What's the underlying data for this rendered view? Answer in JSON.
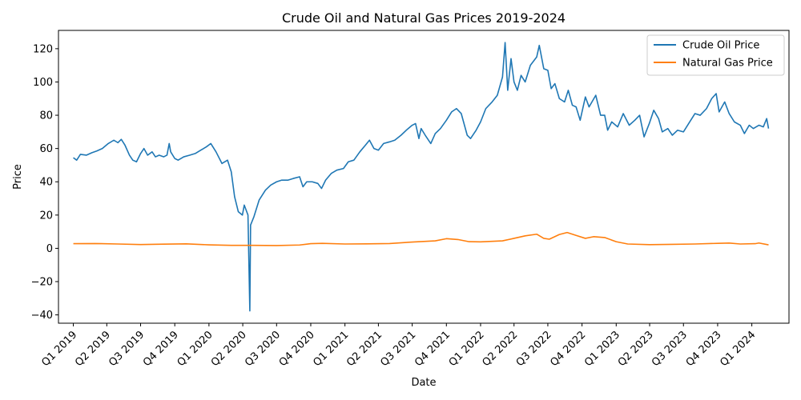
{
  "chart_data": {
    "type": "line",
    "title": "Crude Oil and Natural Gas Prices 2019-2024",
    "xlabel": "Date",
    "ylabel": "Price",
    "ylim": [
      -45,
      131
    ],
    "xlim": [
      "2018-11-22",
      "2024-04-10"
    ],
    "yticks": [
      -40,
      -20,
      0,
      20,
      40,
      60,
      80,
      100,
      120
    ],
    "xticks": [
      {
        "date": "2019-01-01",
        "label": "Q1 2019"
      },
      {
        "date": "2019-04-01",
        "label": "Q2 2019"
      },
      {
        "date": "2019-07-01",
        "label": "Q3 2019"
      },
      {
        "date": "2019-10-01",
        "label": "Q4 2019"
      },
      {
        "date": "2020-01-01",
        "label": "Q1 2020"
      },
      {
        "date": "2020-04-01",
        "label": "Q2 2020"
      },
      {
        "date": "2020-07-01",
        "label": "Q3 2020"
      },
      {
        "date": "2020-10-01",
        "label": "Q4 2020"
      },
      {
        "date": "2021-01-01",
        "label": "Q1 2021"
      },
      {
        "date": "2021-04-01",
        "label": "Q2 2021"
      },
      {
        "date": "2021-07-01",
        "label": "Q3 2021"
      },
      {
        "date": "2021-10-01",
        "label": "Q4 2021"
      },
      {
        "date": "2022-01-01",
        "label": "Q1 2022"
      },
      {
        "date": "2022-04-01",
        "label": "Q2 2022"
      },
      {
        "date": "2022-07-01",
        "label": "Q3 2022"
      },
      {
        "date": "2022-10-01",
        "label": "Q4 2022"
      },
      {
        "date": "2023-01-01",
        "label": "Q1 2023"
      },
      {
        "date": "2023-04-01",
        "label": "Q2 2023"
      },
      {
        "date": "2023-07-01",
        "label": "Q3 2023"
      },
      {
        "date": "2023-10-01",
        "label": "Q4 2023"
      },
      {
        "date": "2024-01-01",
        "label": "Q1 2024"
      }
    ],
    "legend": {
      "placement": "top-right"
    },
    "grid": false,
    "series": [
      {
        "name": "Crude Oil Price",
        "color": "#1f77b4",
        "points": [
          [
            "2019-01-01",
            54.5
          ],
          [
            "2019-01-10",
            53.0
          ],
          [
            "2019-01-20",
            56.5
          ],
          [
            "2019-02-05",
            56.0
          ],
          [
            "2019-02-20",
            57.5
          ],
          [
            "2019-03-05",
            58.5
          ],
          [
            "2019-03-20",
            60.0
          ],
          [
            "2019-04-05",
            63.0
          ],
          [
            "2019-04-20",
            65.0
          ],
          [
            "2019-05-01",
            63.5
          ],
          [
            "2019-05-10",
            65.5
          ],
          [
            "2019-05-20",
            62.0
          ],
          [
            "2019-06-01",
            56.0
          ],
          [
            "2019-06-10",
            53.0
          ],
          [
            "2019-06-20",
            52.0
          ],
          [
            "2019-07-01",
            57.0
          ],
          [
            "2019-07-10",
            60.0
          ],
          [
            "2019-07-20",
            56.0
          ],
          [
            "2019-08-01",
            58.0
          ],
          [
            "2019-08-10",
            55.0
          ],
          [
            "2019-08-20",
            56.0
          ],
          [
            "2019-09-01",
            55.0
          ],
          [
            "2019-09-10",
            56.0
          ],
          [
            "2019-09-16",
            63.0
          ],
          [
            "2019-09-20",
            58.0
          ],
          [
            "2019-10-01",
            54.0
          ],
          [
            "2019-10-10",
            53.0
          ],
          [
            "2019-10-25",
            55.0
          ],
          [
            "2019-11-10",
            56.0
          ],
          [
            "2019-11-25",
            57.0
          ],
          [
            "2019-12-10",
            59.0
          ],
          [
            "2019-12-25",
            61.0
          ],
          [
            "2020-01-06",
            63.0
          ],
          [
            "2020-01-20",
            58.0
          ],
          [
            "2020-02-05",
            51.0
          ],
          [
            "2020-02-20",
            53.0
          ],
          [
            "2020-03-01",
            46.0
          ],
          [
            "2020-03-10",
            31.0
          ],
          [
            "2020-03-20",
            22.0
          ],
          [
            "2020-03-31",
            20.0
          ],
          [
            "2020-04-05",
            26.0
          ],
          [
            "2020-04-15",
            20.0
          ],
          [
            "2020-04-20",
            -37.6
          ],
          [
            "2020-04-22",
            14.0
          ],
          [
            "2020-05-01",
            19.0
          ],
          [
            "2020-05-15",
            29.0
          ],
          [
            "2020-06-01",
            35.0
          ],
          [
            "2020-06-15",
            38.0
          ],
          [
            "2020-07-01",
            40.0
          ],
          [
            "2020-07-15",
            41.0
          ],
          [
            "2020-08-01",
            41.0
          ],
          [
            "2020-08-15",
            42.0
          ],
          [
            "2020-09-01",
            43.0
          ],
          [
            "2020-09-10",
            37.0
          ],
          [
            "2020-09-20",
            40.0
          ],
          [
            "2020-10-05",
            40.0
          ],
          [
            "2020-10-20",
            39.0
          ],
          [
            "2020-10-30",
            36.0
          ],
          [
            "2020-11-10",
            41.0
          ],
          [
            "2020-11-25",
            45.0
          ],
          [
            "2020-12-10",
            47.0
          ],
          [
            "2020-12-28",
            48.0
          ],
          [
            "2021-01-10",
            52.0
          ],
          [
            "2021-01-25",
            53.0
          ],
          [
            "2021-02-10",
            58.0
          ],
          [
            "2021-02-25",
            62.0
          ],
          [
            "2021-03-08",
            65.0
          ],
          [
            "2021-03-20",
            60.0
          ],
          [
            "2021-04-01",
            59.0
          ],
          [
            "2021-04-15",
            63.0
          ],
          [
            "2021-05-01",
            64.0
          ],
          [
            "2021-05-15",
            65.0
          ],
          [
            "2021-06-01",
            68.0
          ],
          [
            "2021-06-15",
            71.0
          ],
          [
            "2021-07-01",
            74.0
          ],
          [
            "2021-07-10",
            75.0
          ],
          [
            "2021-07-19",
            66.0
          ],
          [
            "2021-07-25",
            72.0
          ],
          [
            "2021-08-05",
            68.0
          ],
          [
            "2021-08-20",
            63.0
          ],
          [
            "2021-09-01",
            69.0
          ],
          [
            "2021-09-15",
            72.0
          ],
          [
            "2021-10-01",
            77.0
          ],
          [
            "2021-10-15",
            82.0
          ],
          [
            "2021-10-28",
            84.0
          ],
          [
            "2021-11-10",
            81.0
          ],
          [
            "2021-11-26",
            68.0
          ],
          [
            "2021-12-05",
            66.0
          ],
          [
            "2021-12-20",
            71.0
          ],
          [
            "2022-01-01",
            76.0
          ],
          [
            "2022-01-15",
            84.0
          ],
          [
            "2022-02-01",
            88.0
          ],
          [
            "2022-02-15",
            92.0
          ],
          [
            "2022-03-01",
            103.0
          ],
          [
            "2022-03-08",
            123.7
          ],
          [
            "2022-03-15",
            95.0
          ],
          [
            "2022-03-24",
            114.0
          ],
          [
            "2022-04-01",
            100.0
          ],
          [
            "2022-04-10",
            95.0
          ],
          [
            "2022-04-20",
            104.0
          ],
          [
            "2022-05-01",
            100.0
          ],
          [
            "2022-05-15",
            110.0
          ],
          [
            "2022-06-01",
            115.0
          ],
          [
            "2022-06-08",
            122.0
          ],
          [
            "2022-06-20",
            108.0
          ],
          [
            "2022-07-01",
            107.0
          ],
          [
            "2022-07-10",
            96.0
          ],
          [
            "2022-07-20",
            99.0
          ],
          [
            "2022-08-01",
            90.0
          ],
          [
            "2022-08-15",
            88.0
          ],
          [
            "2022-08-25",
            95.0
          ],
          [
            "2022-09-05",
            86.0
          ],
          [
            "2022-09-15",
            85.0
          ],
          [
            "2022-09-26",
            77.0
          ],
          [
            "2022-10-10",
            91.0
          ],
          [
            "2022-10-20",
            85.0
          ],
          [
            "2022-11-07",
            92.0
          ],
          [
            "2022-11-20",
            80.0
          ],
          [
            "2022-12-01",
            80.0
          ],
          [
            "2022-12-09",
            71.0
          ],
          [
            "2022-12-20",
            76.0
          ],
          [
            "2023-01-05",
            73.0
          ],
          [
            "2023-01-20",
            81.0
          ],
          [
            "2023-02-05",
            74.0
          ],
          [
            "2023-02-20",
            77.0
          ],
          [
            "2023-03-05",
            80.0
          ],
          [
            "2023-03-17",
            67.0
          ],
          [
            "2023-03-31",
            75.0
          ],
          [
            "2023-04-12",
            83.0
          ],
          [
            "2023-04-25",
            78.0
          ],
          [
            "2023-05-05",
            70.0
          ],
          [
            "2023-05-20",
            72.0
          ],
          [
            "2023-06-01",
            68.0
          ],
          [
            "2023-06-15",
            71.0
          ],
          [
            "2023-07-01",
            70.0
          ],
          [
            "2023-07-15",
            75.0
          ],
          [
            "2023-08-01",
            81.0
          ],
          [
            "2023-08-15",
            80.0
          ],
          [
            "2023-09-01",
            84.0
          ],
          [
            "2023-09-15",
            90.0
          ],
          [
            "2023-09-27",
            93.0
          ],
          [
            "2023-10-05",
            82.0
          ],
          [
            "2023-10-20",
            88.0
          ],
          [
            "2023-11-01",
            81.0
          ],
          [
            "2023-11-15",
            76.0
          ],
          [
            "2023-12-01",
            74.0
          ],
          [
            "2023-12-12",
            69.0
          ],
          [
            "2023-12-25",
            74.0
          ],
          [
            "2024-01-05",
            72.0
          ],
          [
            "2024-01-20",
            74.0
          ],
          [
            "2024-02-01",
            73.0
          ],
          [
            "2024-02-10",
            78.0
          ],
          [
            "2024-02-15",
            72.0
          ]
        ]
      },
      {
        "name": "Natural Gas Price",
        "color": "#ff7f0e",
        "points": [
          [
            "2019-01-01",
            2.8
          ],
          [
            "2019-03-01",
            2.9
          ],
          [
            "2019-05-01",
            2.6
          ],
          [
            "2019-07-01",
            2.3
          ],
          [
            "2019-09-01",
            2.5
          ],
          [
            "2019-11-01",
            2.7
          ],
          [
            "2020-01-01",
            2.1
          ],
          [
            "2020-03-01",
            1.8
          ],
          [
            "2020-05-01",
            1.8
          ],
          [
            "2020-07-01",
            1.7
          ],
          [
            "2020-09-01",
            2.0
          ],
          [
            "2020-10-01",
            2.8
          ],
          [
            "2020-11-01",
            3.0
          ],
          [
            "2021-01-01",
            2.6
          ],
          [
            "2021-03-01",
            2.7
          ],
          [
            "2021-05-01",
            2.9
          ],
          [
            "2021-07-01",
            3.8
          ],
          [
            "2021-09-01",
            4.5
          ],
          [
            "2021-10-01",
            5.8
          ],
          [
            "2021-11-01",
            5.3
          ],
          [
            "2021-12-01",
            4.0
          ],
          [
            "2022-01-01",
            3.9
          ],
          [
            "2022-03-01",
            4.5
          ],
          [
            "2022-04-01",
            6.0
          ],
          [
            "2022-05-01",
            7.5
          ],
          [
            "2022-06-01",
            8.5
          ],
          [
            "2022-06-20",
            6.0
          ],
          [
            "2022-07-05",
            5.5
          ],
          [
            "2022-08-01",
            8.3
          ],
          [
            "2022-08-22",
            9.5
          ],
          [
            "2022-09-15",
            7.8
          ],
          [
            "2022-10-10",
            6.0
          ],
          [
            "2022-11-01",
            7.0
          ],
          [
            "2022-12-01",
            6.5
          ],
          [
            "2023-01-01",
            4.0
          ],
          [
            "2023-02-01",
            2.6
          ],
          [
            "2023-04-01",
            2.2
          ],
          [
            "2023-06-01",
            2.4
          ],
          [
            "2023-08-01",
            2.6
          ],
          [
            "2023-10-01",
            3.0
          ],
          [
            "2023-11-01",
            3.2
          ],
          [
            "2023-12-01",
            2.6
          ],
          [
            "2024-01-10",
            2.8
          ],
          [
            "2024-01-20",
            3.2
          ],
          [
            "2024-02-15",
            2.1
          ]
        ]
      }
    ]
  }
}
